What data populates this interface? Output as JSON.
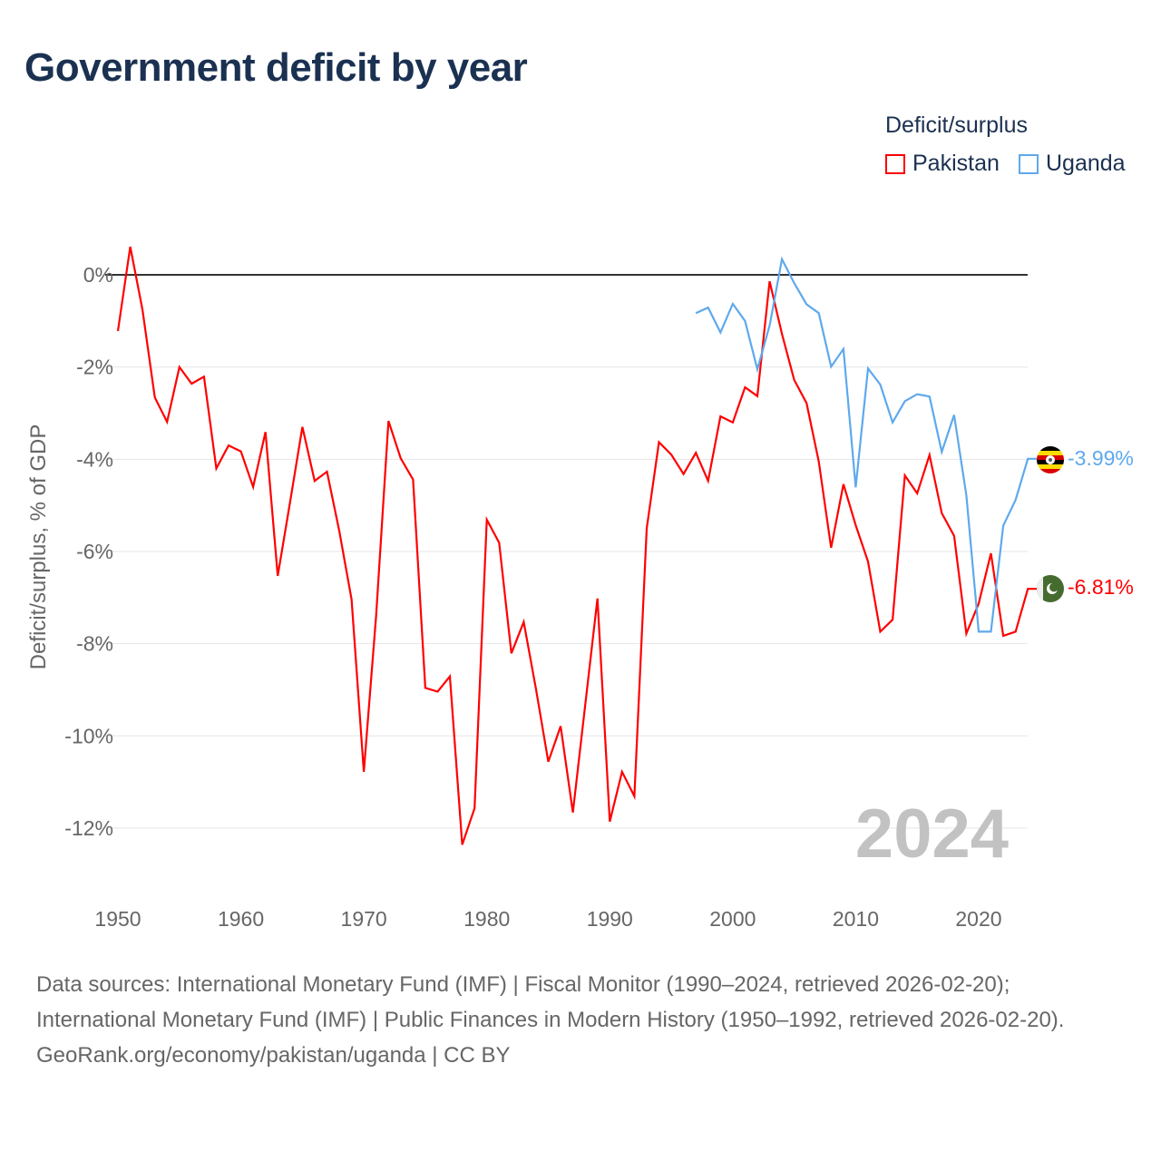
{
  "title": "Government deficit by year",
  "legend": {
    "title": "Deficit/surplus",
    "items": [
      {
        "label": "Pakistan",
        "color": "#ff0000"
      },
      {
        "label": "Uganda",
        "color": "#5ea9ec"
      }
    ]
  },
  "year_watermark": "2024",
  "end_labels": {
    "uganda": "-3.99%",
    "pakistan": "-6.81%"
  },
  "footer": {
    "sources": "Data sources: International Monetary Fund (IMF) | Fiscal Monitor (1990–2024, retrieved 2026-02-20); International Monetary Fund (IMF) | Public Finances in Modern History (1950–1992, retrieved 2026-02-20).",
    "credit": "GeoRank.org/economy/pakistan/uganda | CC BY"
  },
  "chart_data": {
    "type": "line",
    "title": "Government deficit by year",
    "xlabel": "",
    "ylabel": "Deficit/surplus, % of GDP",
    "xlim": [
      1950,
      2024
    ],
    "ylim": [
      -12.5,
      0.8
    ],
    "xticks": [
      1950,
      1960,
      1970,
      1980,
      1990,
      2000,
      2010,
      2020
    ],
    "yticks": [
      0,
      -2,
      -4,
      -6,
      -8,
      -10,
      -12
    ],
    "ytick_labels": [
      "0%",
      "-2%",
      "-4%",
      "-6%",
      "-8%",
      "-10%",
      "-12%"
    ],
    "grid": true,
    "legend_position": "top-right",
    "series": [
      {
        "name": "Pakistan",
        "color": "#ff0000",
        "start_year": 1950,
        "values": [
          -1.22,
          0.61,
          -0.76,
          -2.66,
          -3.19,
          -2.0,
          -2.36,
          -2.21,
          -4.2,
          -3.7,
          -3.83,
          -4.6,
          -3.41,
          -6.53,
          -4.93,
          -3.3,
          -4.47,
          -4.27,
          -5.55,
          -7.04,
          -10.78,
          -7.39,
          -3.17,
          -3.98,
          -4.44,
          -8.96,
          -9.04,
          -8.71,
          -12.36,
          -11.57,
          -5.31,
          -5.81,
          -8.21,
          -7.53,
          -8.98,
          -10.56,
          -9.79,
          -11.66,
          -9.33,
          -7.02,
          -11.86,
          -10.78,
          -11.31,
          -5.5,
          -3.63,
          -3.9,
          -4.32,
          -3.86,
          -4.47,
          -3.07,
          -3.2,
          -2.44,
          -2.63,
          -0.14,
          -1.28,
          -2.28,
          -2.78,
          -4.05,
          -5.92,
          -4.54,
          -5.43,
          -6.22,
          -7.74,
          -7.48,
          -4.35,
          -4.74,
          -3.91,
          -5.17,
          -5.66,
          -7.78,
          -7.13,
          -6.04,
          -7.83,
          -7.74,
          -6.81
        ]
      },
      {
        "name": "Uganda",
        "color": "#5ea9ec",
        "start_year": 1997,
        "values": [
          -0.83,
          -0.71,
          -1.25,
          -0.63,
          -1.0,
          -2.05,
          -1.1,
          0.34,
          -0.18,
          -0.64,
          -0.83,
          -1.99,
          -1.61,
          -4.61,
          -2.03,
          -2.38,
          -3.2,
          -2.74,
          -2.59,
          -2.64,
          -3.84,
          -3.04,
          -4.78,
          -7.74,
          -7.74,
          -5.44,
          -4.88,
          -3.99
        ]
      }
    ]
  }
}
